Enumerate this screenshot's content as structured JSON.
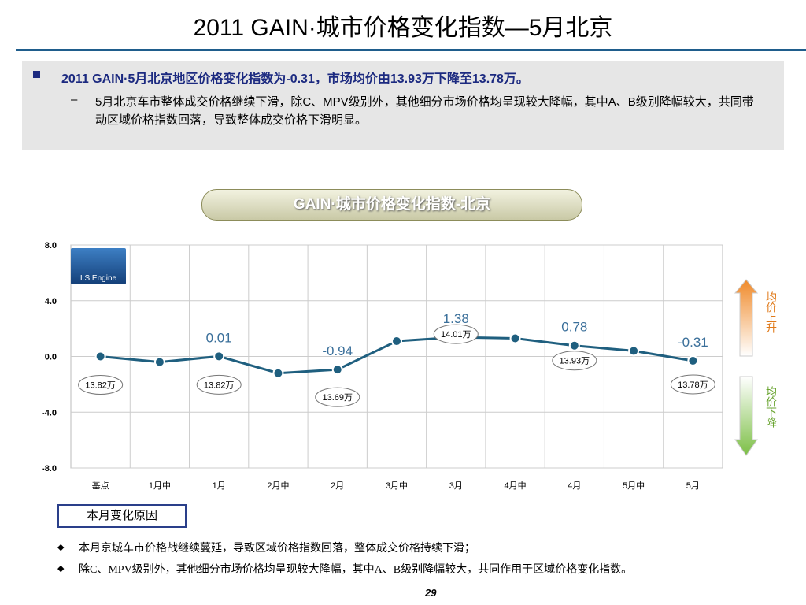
{
  "title": "2011 GAIN·城市价格变化指数—5月北京",
  "bullet": "2011 GAIN·5月北京地区价格变化指数为-0.31，市场均价由13.93万下降至13.78万。",
  "sub_bullet": "5月北京车市整体成交价格继续下滑，除C、MPV级别外，其他细分市场价格均呈现较大降幅，其中A、B级别降幅较大，共同带动区域价格指数回落，导致整体成交价格下滑明显。",
  "chart_data": {
    "type": "line",
    "title": "GAIN·城市价格变化指数-北京",
    "categories": [
      "基点",
      "1月中",
      "1月",
      "2月中",
      "2月",
      "3月中",
      "3月",
      "4月中",
      "4月",
      "5月中",
      "5月"
    ],
    "values": [
      0,
      -0.4,
      0.01,
      -1.2,
      -0.94,
      1.1,
      1.38,
      1.3,
      0.78,
      0.4,
      -0.31
    ],
    "value_labels": [
      null,
      null,
      "0.01",
      null,
      "-0.94",
      null,
      "1.38",
      null,
      "0.78",
      null,
      "-0.31"
    ],
    "price_labels": [
      "13.82万",
      null,
      "13.82万",
      null,
      "13.69万",
      null,
      "14.01万",
      null,
      "13.93万",
      null,
      "13.78万"
    ],
    "color": "#1f5f7f",
    "ylim": [
      -8,
      8
    ],
    "yticks": [
      {
        "value": -8,
        "label": "-8.0"
      },
      {
        "value": -4,
        "label": "-4.0"
      },
      {
        "value": 0,
        "label": "0.0"
      },
      {
        "value": 4,
        "label": "4.0"
      },
      {
        "value": 8,
        "label": "8.0"
      }
    ],
    "grid": true,
    "logo": "I.S.Engine",
    "up_label": "均价上升",
    "down_label": "均价下降"
  },
  "reason_title": "本月变化原因",
  "reasons": [
    "本月京城车市价格战继续蔓延，导致区域价格指数回落，整体成交价格持续下滑；",
    "除C、MPV级别外，其他细分市场价格均呈现较大降幅，其中A、B级别降幅较大，共同作用于区域价格变化指数。"
  ],
  "page": "29"
}
